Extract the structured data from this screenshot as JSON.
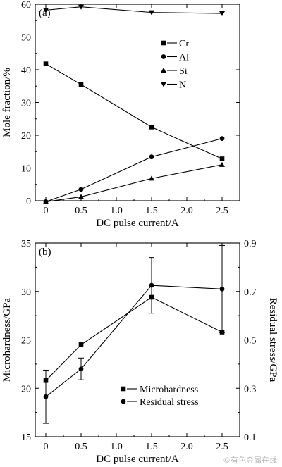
{
  "chart_data": [
    {
      "type": "line",
      "panel_label": "(a)",
      "xlabel": "DC pulse current/A",
      "ylabel": "Mole fraction/%",
      "xlim": [
        -0.15,
        2.75
      ],
      "ylim": [
        0,
        60
      ],
      "x_ticks": [
        0,
        0.5,
        1.0,
        1.5,
        2.0,
        2.5
      ],
      "x_tick_labels": [
        "0",
        "0.5",
        "1.0",
        "1.5",
        "2.0",
        "2.5"
      ],
      "y_ticks": [
        0,
        10,
        20,
        30,
        40,
        50,
        60
      ],
      "y_tick_labels": [
        "0",
        "10",
        "20",
        "30",
        "40",
        "50",
        "60"
      ],
      "legend_position": "upper-right",
      "series": [
        {
          "name": "Cr",
          "marker": "square",
          "x": [
            0,
            0.5,
            1.5,
            2.5
          ],
          "y": [
            41.8,
            35.5,
            22.5,
            12.8
          ]
        },
        {
          "name": "Al",
          "marker": "circle",
          "x": [
            0,
            0.5,
            1.5,
            2.5
          ],
          "y": [
            -0.3,
            3.5,
            13.4,
            19.0
          ]
        },
        {
          "name": "Si",
          "marker": "triangle-up",
          "x": [
            0,
            0.5,
            1.5,
            2.5
          ],
          "y": [
            -0.3,
            1.2,
            6.8,
            11.0
          ]
        },
        {
          "name": "N",
          "marker": "triangle-down",
          "x": [
            0,
            0.5,
            1.5,
            2.5
          ],
          "y": [
            58.2,
            59.2,
            57.5,
            57.2
          ]
        }
      ]
    },
    {
      "type": "line",
      "panel_label": "(b)",
      "xlabel": "DC pulse current/A",
      "ylabel": "Microhardness/GPa",
      "y2label": "Residual stress/GPa",
      "xlim": [
        -0.15,
        2.75
      ],
      "ylim": [
        15,
        35
      ],
      "y2lim": [
        0.1,
        0.9
      ],
      "x_ticks": [
        0,
        0.5,
        1.0,
        1.5,
        2.0,
        2.5
      ],
      "x_tick_labels": [
        "0",
        "0.5",
        "1.0",
        "1.5",
        "2.0",
        "2.5"
      ],
      "y_ticks": [
        15,
        20,
        25,
        30,
        35
      ],
      "y_tick_labels": [
        "15",
        "20",
        "25",
        "30",
        "35"
      ],
      "y2_ticks": [
        0.1,
        0.3,
        0.5,
        0.7,
        0.9
      ],
      "y2_tick_labels": [
        "0.1",
        "0.3",
        "0.5",
        "0.7",
        "0.9"
      ],
      "legend_position": "lower-center",
      "series": [
        {
          "name": "Microhardness",
          "marker": "square",
          "axis": "left",
          "x": [
            0,
            0.5,
            1.5,
            2.5
          ],
          "y": [
            20.8,
            24.5,
            29.4,
            25.8
          ]
        },
        {
          "name": "Residual stress",
          "marker": "circle",
          "axis": "right",
          "x": [
            0,
            0.5,
            1.5,
            2.5
          ],
          "y": [
            0.265,
            0.38,
            0.725,
            0.71
          ],
          "error": [
            0.11,
            0.045,
            0.115,
            0.18
          ]
        }
      ]
    }
  ],
  "watermark": "©有色金属在线"
}
